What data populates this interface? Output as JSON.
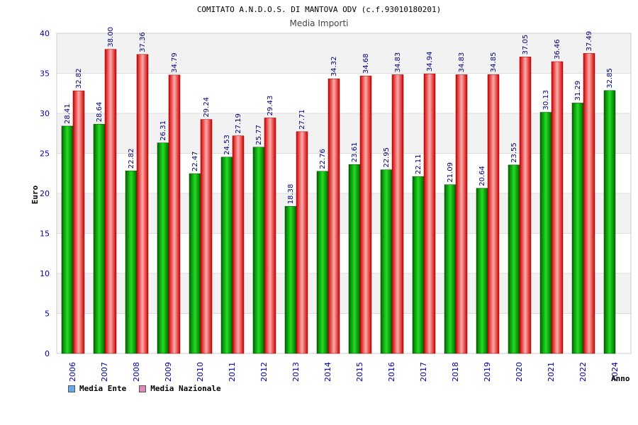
{
  "chart_data": {
    "type": "bar",
    "title": "COMITATO A.N.D.O.S. DI MANTOVA ODV (c.f.93010180201)",
    "subtitle": "Media Importi",
    "xlabel": "Anno",
    "ylabel": "Euro",
    "ylim": [
      0,
      40
    ],
    "yticks": [
      0,
      5,
      10,
      15,
      20,
      25,
      30,
      35,
      40
    ],
    "grid": true,
    "categories": [
      "2006",
      "2007",
      "2008",
      "2009",
      "2010",
      "2011",
      "2012",
      "2013",
      "2014",
      "2015",
      "2016",
      "2017",
      "2018",
      "2019",
      "2020",
      "2021",
      "2022",
      "2024"
    ],
    "series": [
      {
        "name": "Media Ente",
        "color": "#00aa00",
        "values": [
          28.41,
          28.64,
          22.82,
          26.31,
          22.47,
          24.53,
          25.77,
          18.38,
          22.76,
          23.61,
          22.95,
          22.11,
          21.09,
          20.64,
          23.55,
          30.13,
          31.29,
          32.85
        ],
        "labels": [
          "28.41",
          "28.64",
          "22.82",
          "26.31",
          "22.47",
          "24.53",
          "25.77",
          "18.38",
          "22.76",
          "23.61",
          "22.95",
          "22.11",
          "21.09",
          "20.64",
          "23.55",
          "30.13",
          "31.29",
          "32.85"
        ]
      },
      {
        "name": "Media Nazionale",
        "color": "#ee2222",
        "values": [
          32.82,
          38.0,
          37.36,
          34.79,
          29.24,
          27.19,
          29.43,
          27.71,
          34.32,
          34.68,
          34.83,
          34.94,
          34.83,
          34.85,
          37.05,
          36.46,
          37.49,
          null
        ],
        "labels": [
          "32.82",
          "38.00",
          "37.36",
          "34.79",
          "29.24",
          "27.19",
          "29.43",
          "27.71",
          "34.32",
          "34.68",
          "34.83",
          "34.94",
          "34.83",
          "34.85",
          "37.05",
          "36.46",
          "37.49",
          ""
        ]
      }
    ],
    "legend": [
      {
        "label": "Media Ente",
        "color": "#66aaee"
      },
      {
        "label": "Media Nazionale",
        "color": "#dd88bb"
      }
    ]
  }
}
